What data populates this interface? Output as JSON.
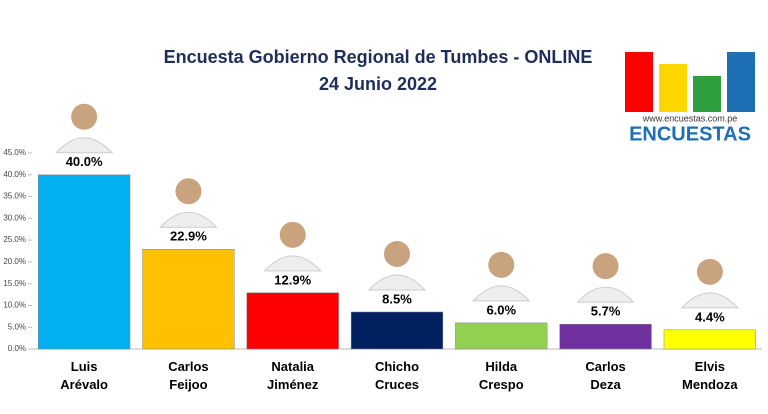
{
  "chart_data": {
    "type": "bar",
    "title": "Encuesta Gobierno Regional de Tumbes - ONLINE",
    "subtitle": "24 Junio 2022",
    "logo": {
      "url": "www.encuestas.com.pe",
      "name": "ENCUESTAS"
    },
    "categories": [
      "Luis Arévalo",
      "Carlos Feijoo",
      "Natalia Jiménez",
      "Chicho Cruces",
      "Hilda Crespo",
      "Carlos Deza",
      "Elvis Mendoza"
    ],
    "values": [
      40.0,
      22.9,
      12.9,
      8.5,
      6.0,
      5.7,
      4.4
    ],
    "value_labels": [
      "40.0%",
      "22.9%",
      "12.9%",
      "8.5%",
      "6.0%",
      "5.7%",
      "4.4%"
    ],
    "colors": [
      "#00b0f0",
      "#ffc000",
      "#ff0000",
      "#002060",
      "#92d050",
      "#7030a0",
      "#ffff00"
    ],
    "ylim": [
      0,
      45
    ],
    "yticks": [
      {
        "value": 0,
        "label": "0.0%"
      },
      {
        "value": 5,
        "label": "5.0%"
      },
      {
        "value": 10,
        "label": "10.0%"
      },
      {
        "value": 15,
        "label": "15.0%"
      },
      {
        "value": 20,
        "label": "20.0%"
      },
      {
        "value": 25,
        "label": "25.0%"
      },
      {
        "value": 30,
        "label": "30.0%"
      },
      {
        "value": 35,
        "label": "35.0%"
      },
      {
        "value": 40,
        "label": "40.0%"
      },
      {
        "value": 45,
        "label": "45.0%"
      }
    ],
    "grid": false
  }
}
